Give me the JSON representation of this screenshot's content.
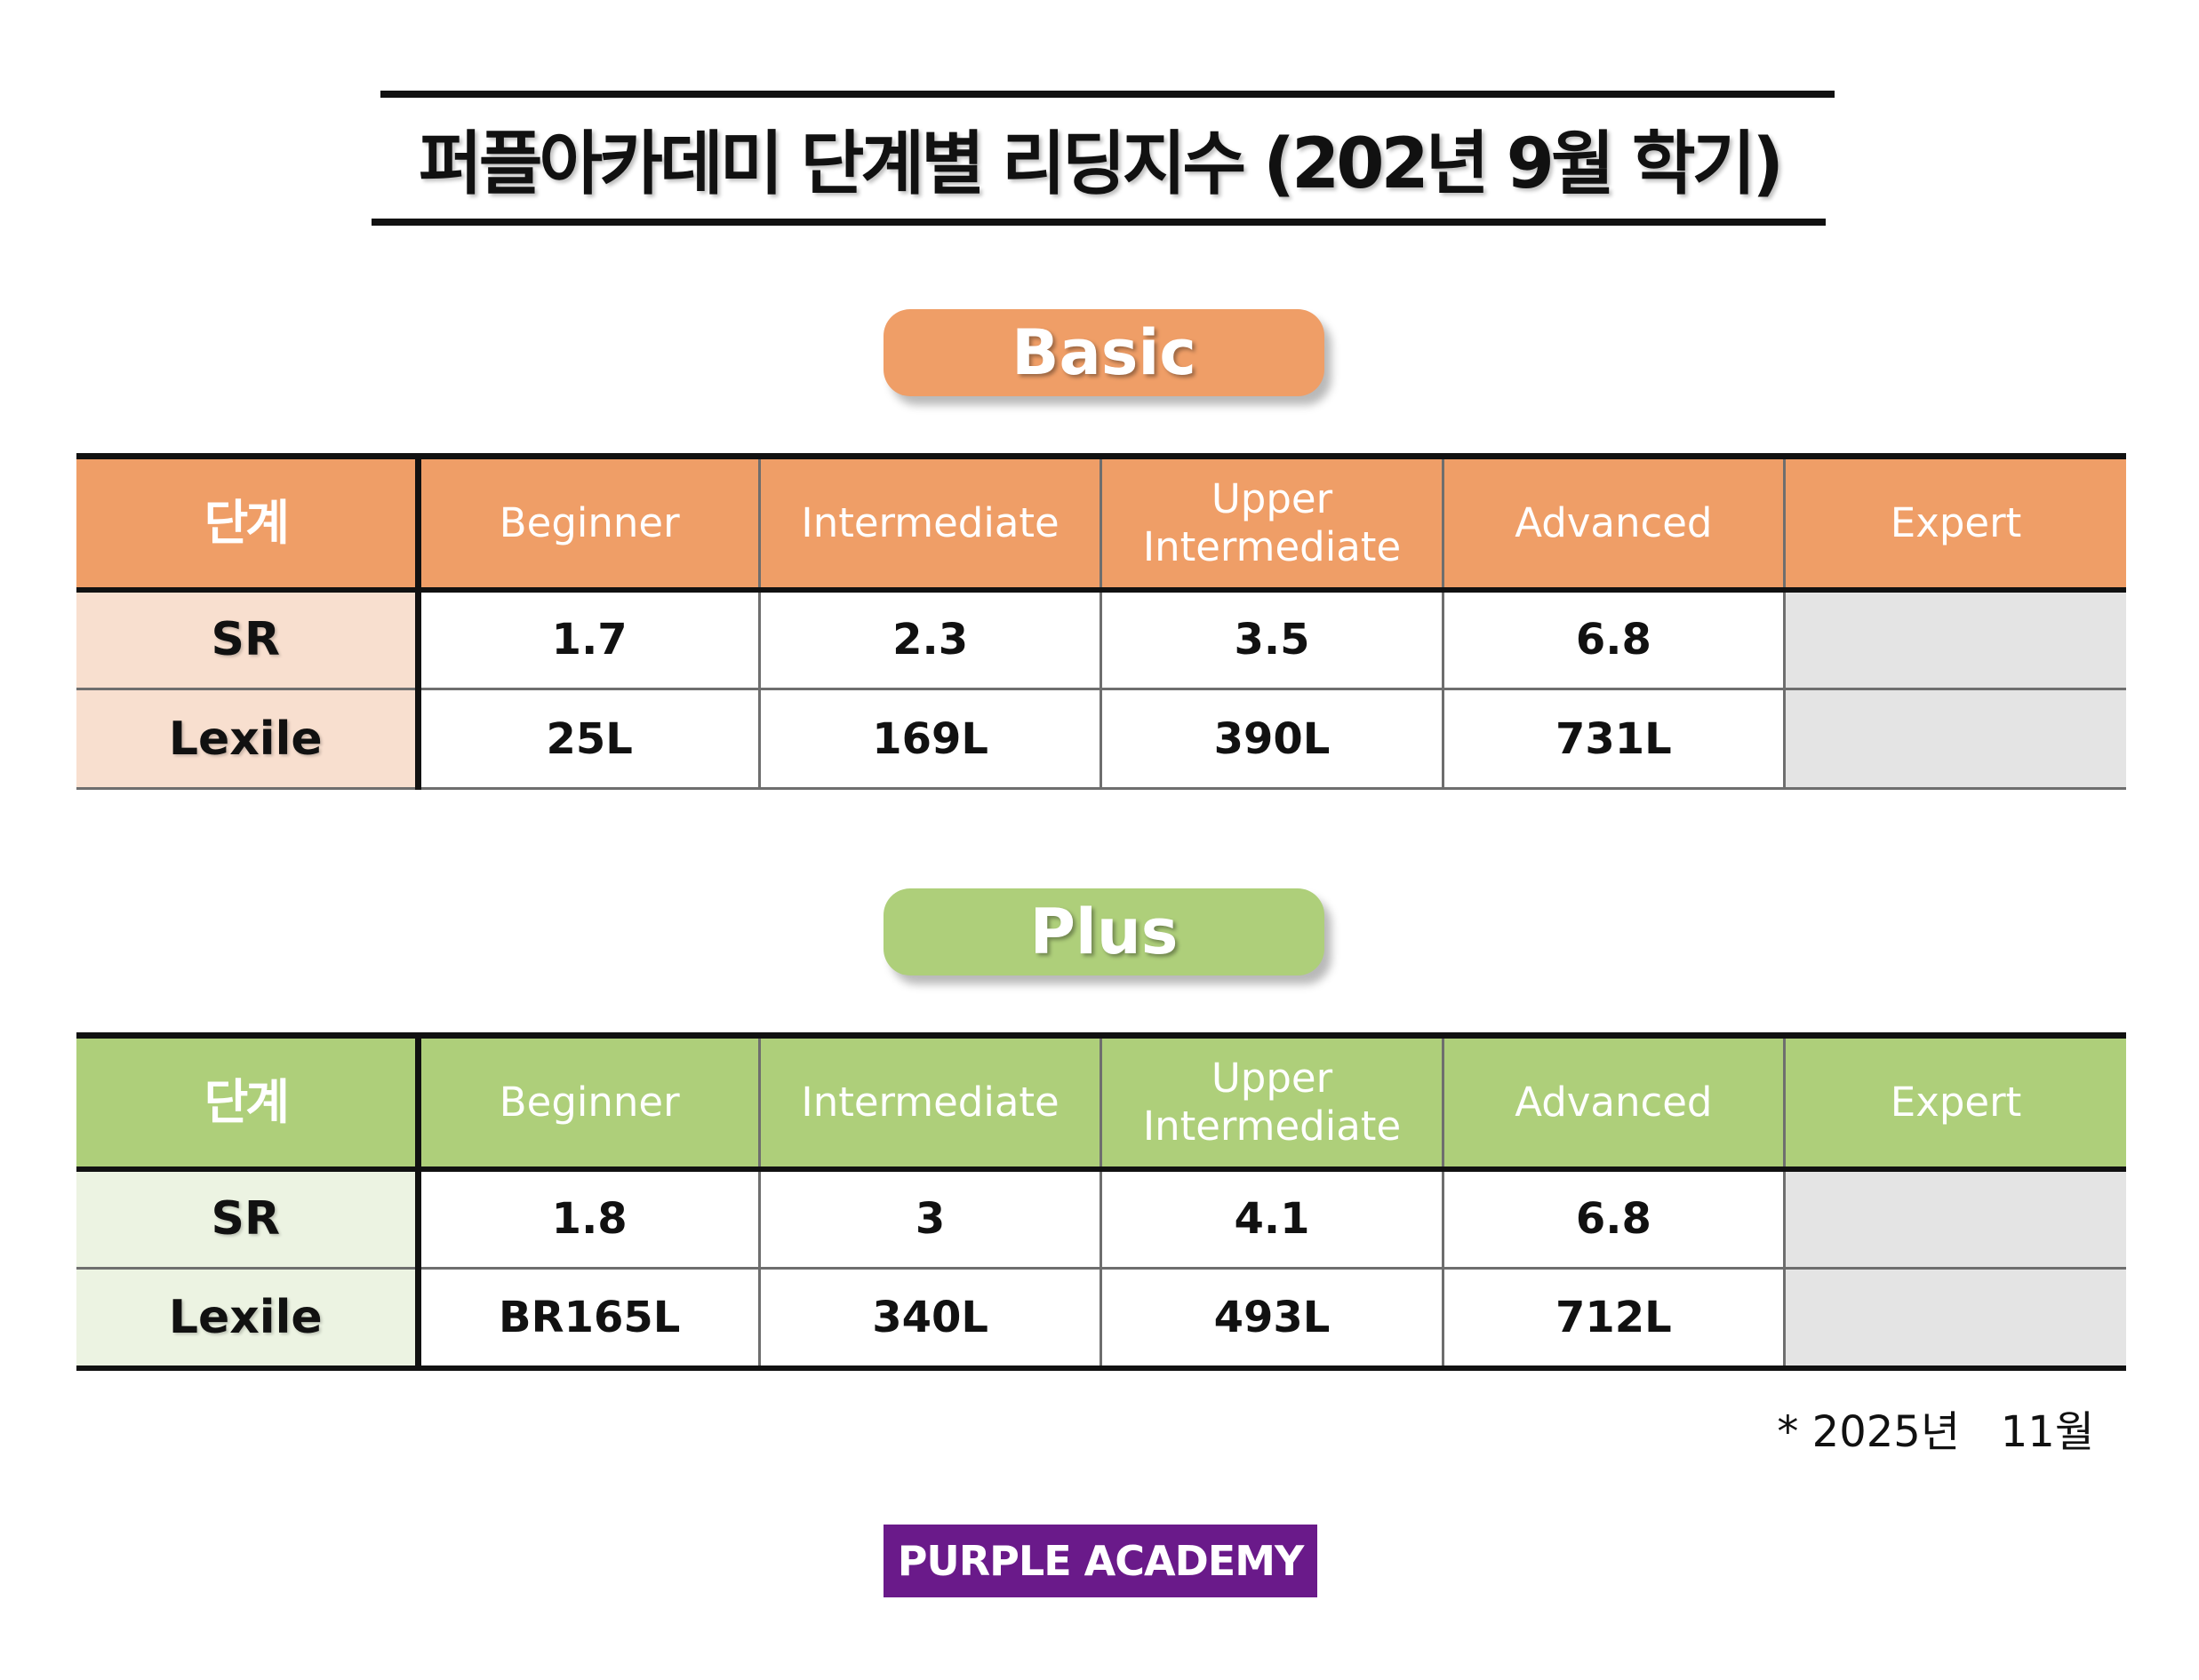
{
  "title": "퍼플아카데미 단계별 리딩지수 (202년 9월 학기)",
  "colors": {
    "basic_accent": "#ef9e67",
    "basic_label_bg": "#f8dfcf",
    "plus_accent": "#aecf7a",
    "plus_label_bg": "#ecf3e2",
    "empty_cell": "#e4e4e4",
    "brand": "#6a1a8a"
  },
  "basic": {
    "label": "Basic",
    "table": {
      "stage_header": "단계",
      "columns": [
        {
          "line1": "Beginner",
          "line2": ""
        },
        {
          "line1": "Intermediate",
          "line2": ""
        },
        {
          "line1": "Upper",
          "line2": "Intermediate"
        },
        {
          "line1": "Advanced",
          "line2": ""
        },
        {
          "line1": "Expert",
          "line2": ""
        }
      ],
      "rows": [
        {
          "label": "SR",
          "values": [
            "1.7",
            "2.3",
            "3.5",
            "6.8",
            ""
          ]
        },
        {
          "label": "Lexile",
          "values": [
            "25L",
            "169L",
            "390L",
            "731L",
            ""
          ]
        }
      ]
    }
  },
  "plus": {
    "label": "Plus",
    "table": {
      "stage_header": "단계",
      "columns": [
        {
          "line1": "Beginner",
          "line2": ""
        },
        {
          "line1": "Intermediate",
          "line2": ""
        },
        {
          "line1": "Upper",
          "line2": "Intermediate"
        },
        {
          "line1": "Advanced",
          "line2": ""
        },
        {
          "line1": "Expert",
          "line2": ""
        }
      ],
      "rows": [
        {
          "label": "SR",
          "values": [
            "1.8",
            "3",
            "4.1",
            "6.8",
            ""
          ]
        },
        {
          "label": "Lexile",
          "values": [
            "BR165L",
            "340L",
            "493L",
            "712L",
            ""
          ]
        }
      ]
    }
  },
  "footnote": "* 2025년   11월",
  "brand": "PURPLE ACADEMY"
}
